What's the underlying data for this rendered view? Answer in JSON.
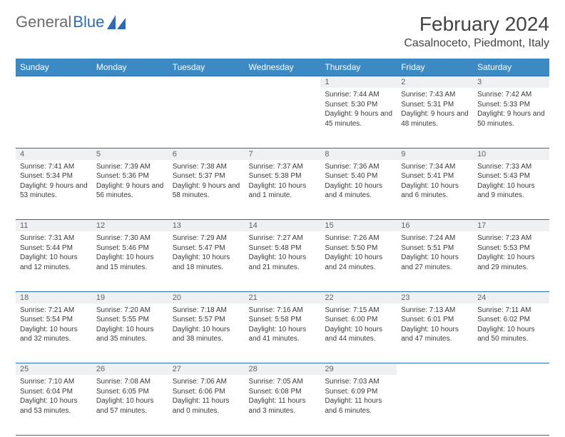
{
  "logo": {
    "text1": "General",
    "text2": "Blue"
  },
  "title": "February 2024",
  "location": "Casalnoceto, Piedmont, Italy",
  "colors": {
    "header_bg": "#3b8ac4",
    "header_text": "#ffffff",
    "border": "#2a6db5",
    "daynum_bg": "#eef0f2",
    "daynum_text": "#606468",
    "body_text": "#3a3a3a",
    "logo_gray": "#6b6b6b",
    "logo_blue": "#2a6db5"
  },
  "day_headers": [
    "Sunday",
    "Monday",
    "Tuesday",
    "Wednesday",
    "Thursday",
    "Friday",
    "Saturday"
  ],
  "weeks": [
    [
      null,
      null,
      null,
      null,
      {
        "n": "1",
        "sunrise": "7:44 AM",
        "sunset": "5:30 PM",
        "daylight": "9 hours and 45 minutes."
      },
      {
        "n": "2",
        "sunrise": "7:43 AM",
        "sunset": "5:31 PM",
        "daylight": "9 hours and 48 minutes."
      },
      {
        "n": "3",
        "sunrise": "7:42 AM",
        "sunset": "5:33 PM",
        "daylight": "9 hours and 50 minutes."
      }
    ],
    [
      {
        "n": "4",
        "sunrise": "7:41 AM",
        "sunset": "5:34 PM",
        "daylight": "9 hours and 53 minutes."
      },
      {
        "n": "5",
        "sunrise": "7:39 AM",
        "sunset": "5:36 PM",
        "daylight": "9 hours and 56 minutes."
      },
      {
        "n": "6",
        "sunrise": "7:38 AM",
        "sunset": "5:37 PM",
        "daylight": "9 hours and 58 minutes."
      },
      {
        "n": "7",
        "sunrise": "7:37 AM",
        "sunset": "5:38 PM",
        "daylight": "10 hours and 1 minute."
      },
      {
        "n": "8",
        "sunrise": "7:36 AM",
        "sunset": "5:40 PM",
        "daylight": "10 hours and 4 minutes."
      },
      {
        "n": "9",
        "sunrise": "7:34 AM",
        "sunset": "5:41 PM",
        "daylight": "10 hours and 6 minutes."
      },
      {
        "n": "10",
        "sunrise": "7:33 AM",
        "sunset": "5:43 PM",
        "daylight": "10 hours and 9 minutes."
      }
    ],
    [
      {
        "n": "11",
        "sunrise": "7:31 AM",
        "sunset": "5:44 PM",
        "daylight": "10 hours and 12 minutes."
      },
      {
        "n": "12",
        "sunrise": "7:30 AM",
        "sunset": "5:46 PM",
        "daylight": "10 hours and 15 minutes."
      },
      {
        "n": "13",
        "sunrise": "7:29 AM",
        "sunset": "5:47 PM",
        "daylight": "10 hours and 18 minutes."
      },
      {
        "n": "14",
        "sunrise": "7:27 AM",
        "sunset": "5:48 PM",
        "daylight": "10 hours and 21 minutes."
      },
      {
        "n": "15",
        "sunrise": "7:26 AM",
        "sunset": "5:50 PM",
        "daylight": "10 hours and 24 minutes."
      },
      {
        "n": "16",
        "sunrise": "7:24 AM",
        "sunset": "5:51 PM",
        "daylight": "10 hours and 27 minutes."
      },
      {
        "n": "17",
        "sunrise": "7:23 AM",
        "sunset": "5:53 PM",
        "daylight": "10 hours and 29 minutes."
      }
    ],
    [
      {
        "n": "18",
        "sunrise": "7:21 AM",
        "sunset": "5:54 PM",
        "daylight": "10 hours and 32 minutes."
      },
      {
        "n": "19",
        "sunrise": "7:20 AM",
        "sunset": "5:55 PM",
        "daylight": "10 hours and 35 minutes."
      },
      {
        "n": "20",
        "sunrise": "7:18 AM",
        "sunset": "5:57 PM",
        "daylight": "10 hours and 38 minutes."
      },
      {
        "n": "21",
        "sunrise": "7:16 AM",
        "sunset": "5:58 PM",
        "daylight": "10 hours and 41 minutes."
      },
      {
        "n": "22",
        "sunrise": "7:15 AM",
        "sunset": "6:00 PM",
        "daylight": "10 hours and 44 minutes."
      },
      {
        "n": "23",
        "sunrise": "7:13 AM",
        "sunset": "6:01 PM",
        "daylight": "10 hours and 47 minutes."
      },
      {
        "n": "24",
        "sunrise": "7:11 AM",
        "sunset": "6:02 PM",
        "daylight": "10 hours and 50 minutes."
      }
    ],
    [
      {
        "n": "25",
        "sunrise": "7:10 AM",
        "sunset": "6:04 PM",
        "daylight": "10 hours and 53 minutes."
      },
      {
        "n": "26",
        "sunrise": "7:08 AM",
        "sunset": "6:05 PM",
        "daylight": "10 hours and 57 minutes."
      },
      {
        "n": "27",
        "sunrise": "7:06 AM",
        "sunset": "6:06 PM",
        "daylight": "11 hours and 0 minutes."
      },
      {
        "n": "28",
        "sunrise": "7:05 AM",
        "sunset": "6:08 PM",
        "daylight": "11 hours and 3 minutes."
      },
      {
        "n": "29",
        "sunrise": "7:03 AM",
        "sunset": "6:09 PM",
        "daylight": "11 hours and 6 minutes."
      },
      null,
      null
    ]
  ],
  "labels": {
    "sunrise": "Sunrise:",
    "sunset": "Sunset:",
    "daylight": "Daylight:"
  }
}
